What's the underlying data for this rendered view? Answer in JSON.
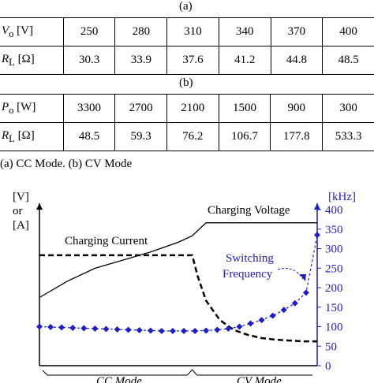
{
  "table_a": {
    "caption": "(a)",
    "rows": [
      {
        "label_sym": "V",
        "label_sub": "o",
        "label_unit": " [V]",
        "values": [
          "250",
          "280",
          "310",
          "340",
          "370",
          "400"
        ]
      },
      {
        "label_sym": "R",
        "label_sub": "L",
        "label_unit": " [Ω]",
        "values": [
          "30.3",
          "33.9",
          "37.6",
          "41.2",
          "44.8",
          "48.5"
        ]
      }
    ]
  },
  "table_b": {
    "caption": "(b)",
    "rows": [
      {
        "label_sym": "P",
        "label_sub": "o",
        "label_unit": " [W]",
        "values": [
          "3300",
          "2700",
          "2100",
          "1500",
          "900",
          "300"
        ]
      },
      {
        "label_sym": "R",
        "label_sub": "L",
        "label_unit": " [Ω]",
        "values": [
          "48.5",
          "59.3",
          "76.2",
          "106.7",
          "177.8",
          "533.3"
        ]
      }
    ]
  },
  "modes_caption": "(a) CC Mode. (b) CV Mode",
  "chart_data": {
    "type": "line",
    "left_axis_label": [
      "[V]",
      "or",
      "[A]"
    ],
    "right_axis_label": "[kHz]",
    "right_axis_ticks": [
      "0",
      "50",
      "100",
      "150",
      "200",
      "250",
      "300",
      "350",
      "400"
    ],
    "right_axis_range": [
      0,
      400
    ],
    "x_range": [
      0,
      1
    ],
    "mode_boundary": 0.55,
    "mode_labels": [
      "CC Mode",
      "CV Mode"
    ],
    "colors": {
      "frequency": "#1f1fbf",
      "axis": "#000000"
    },
    "series": [
      {
        "name": "Charging Voltage",
        "style": "solid",
        "x": [
          0,
          0.1,
          0.2,
          0.3,
          0.4,
          0.5,
          0.55,
          0.6,
          0.7,
          0.8,
          0.9,
          0.95,
          1.0
        ],
        "y": [
          0.42,
          0.52,
          0.6,
          0.65,
          0.7,
          0.76,
          0.8,
          0.88,
          0.88,
          0.88,
          0.88,
          0.88,
          0.88
        ]
      },
      {
        "name": "Charging Current",
        "style": "dashed",
        "x": [
          0,
          0.55,
          0.57,
          0.6,
          0.65,
          0.7,
          0.75,
          0.8,
          0.85,
          0.9,
          0.95,
          1.0
        ],
        "y": [
          0.68,
          0.68,
          0.55,
          0.4,
          0.28,
          0.22,
          0.19,
          0.17,
          0.16,
          0.155,
          0.15,
          0.15
        ]
      },
      {
        "name": "Switching Frequency",
        "style": "dotted-diamond",
        "x": [
          0,
          0.04,
          0.08,
          0.12,
          0.16,
          0.2,
          0.24,
          0.28,
          0.32,
          0.36,
          0.4,
          0.44,
          0.48,
          0.52,
          0.56,
          0.6,
          0.64,
          0.68,
          0.72,
          0.76,
          0.8,
          0.84,
          0.88,
          0.92,
          0.96,
          1.0
        ],
        "y": [
          100,
          99,
          98,
          97,
          96,
          95,
          94,
          93,
          92,
          91,
          90,
          89,
          89,
          89,
          89,
          90,
          92,
          95,
          100,
          108,
          117,
          128,
          143,
          160,
          187,
          335
        ]
      }
    ]
  }
}
